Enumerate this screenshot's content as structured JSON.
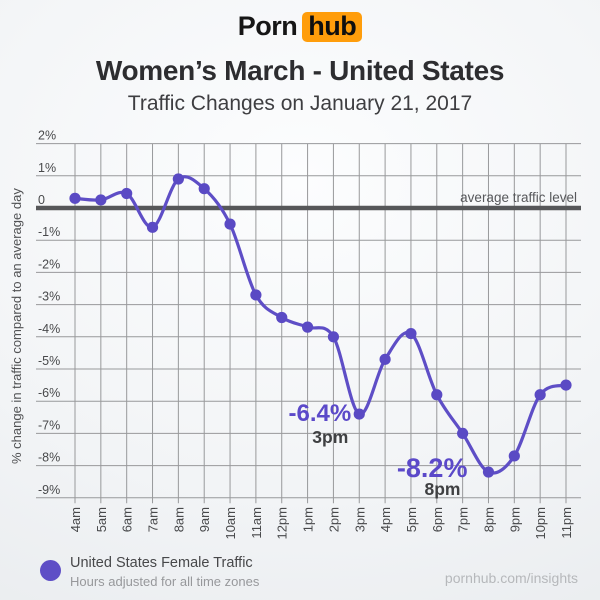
{
  "logo": {
    "part1": "Porn",
    "part2": "hub",
    "orange": "#ff9d0b"
  },
  "header": {
    "title": "Women’s March - United States",
    "subtitle": "Traffic Changes on January 21, 2017"
  },
  "chart_data": {
    "type": "line",
    "title": "Women’s March - United States — Traffic Changes on January 21, 2017",
    "x": [
      "4am",
      "5am",
      "6am",
      "7am",
      "8am",
      "9am",
      "10am",
      "11am",
      "12pm",
      "1pm",
      "2pm",
      "3pm",
      "4pm",
      "5pm",
      "6pm",
      "7pm",
      "8pm",
      "9pm",
      "10pm",
      "11pm"
    ],
    "series": [
      {
        "name": "United States Female Traffic",
        "values": [
          0.3,
          0.25,
          0.45,
          -0.6,
          0.9,
          0.6,
          -0.5,
          -2.7,
          -3.4,
          -3.7,
          -4.0,
          -6.4,
          -4.7,
          -3.9,
          -5.8,
          -7.0,
          -8.2,
          -7.7,
          -5.8,
          -5.5
        ]
      }
    ],
    "xlabel": "",
    "ylabel": "% change in traffic compared to an average day",
    "ylim": [
      -9,
      2
    ],
    "y_ticks": [
      2,
      1,
      0,
      -1,
      -2,
      -3,
      -4,
      -5,
      -6,
      -7,
      -8,
      -9
    ],
    "y_tick_labels": [
      "2%",
      "1%",
      "0",
      "-1%",
      "-2%",
      "-3%",
      "-4%",
      "-5%",
      "-6%",
      "-7%",
      "-8%",
      "-9%"
    ],
    "grid": true,
    "zero_line_label": "average traffic level",
    "annotations": [
      {
        "value": "-6.4%",
        "time": "3pm",
        "x_index": 11,
        "y_value": -6.4
      },
      {
        "value": "-8.2%",
        "time": "8pm",
        "x_index": 16,
        "y_value": -8.2
      }
    ],
    "colors": {
      "line": "#5e4ec6",
      "point": "#5a4ac4",
      "grid": "#98999b",
      "zero_line": "#565759",
      "annotation_value": "#5b49c9",
      "annotation_time": "#3f4042",
      "tick_text": "#48494b"
    },
    "legend_position": "bottom-left"
  },
  "legend": {
    "series_label": "United States Female Traffic",
    "note": "Hours adjusted for all time zones",
    "marker_color": "#5e4ec6"
  },
  "footer": {
    "site": "pornhub.com/insights"
  }
}
